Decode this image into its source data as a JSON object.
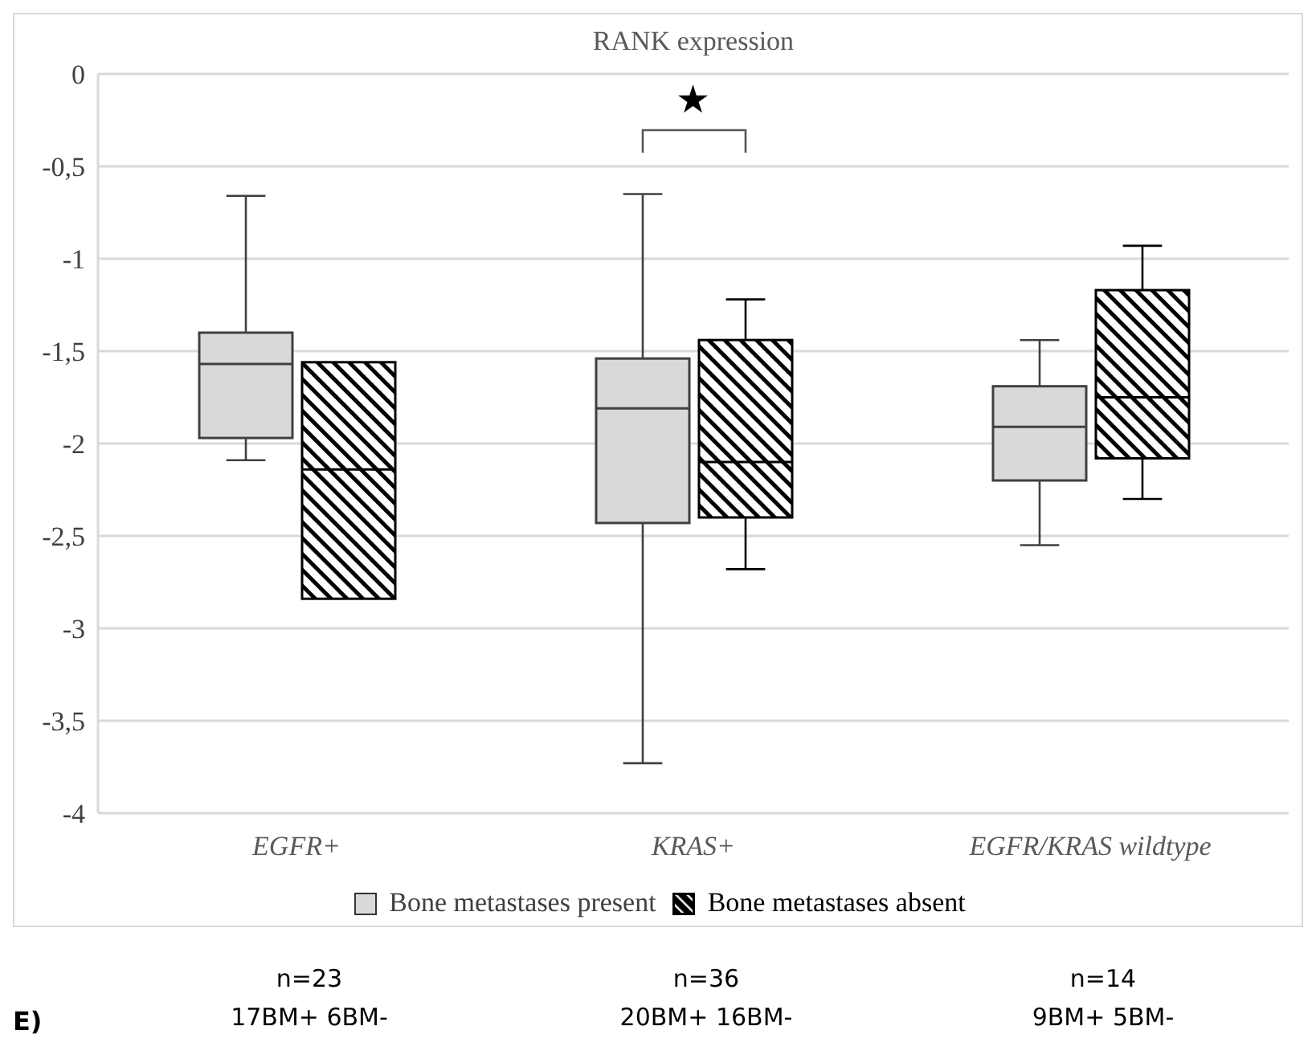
{
  "chart_data": {
    "type": "box",
    "title": "RANK expression",
    "categories": [
      "EGFR+",
      "KRAS+",
      "EGFR/KRAS wildtype"
    ],
    "series": [
      {
        "name": "Bone metastases present",
        "color": "#d9d9d9",
        "boxes": [
          {
            "low": -2.09,
            "q1": -1.97,
            "median": -1.57,
            "q3": -1.4,
            "high": -0.66
          },
          {
            "low": -3.73,
            "q1": -2.43,
            "median": -1.81,
            "q3": -1.54,
            "high": -0.65
          },
          {
            "low": -2.55,
            "q1": -2.2,
            "median": -1.91,
            "q3": -1.69,
            "high": -1.44
          }
        ]
      },
      {
        "name": "Bone metastases absent",
        "color": "#000000",
        "boxes": [
          {
            "low": -2.84,
            "q1": -2.84,
            "median": -2.14,
            "q3": -1.56,
            "high": -1.56
          },
          {
            "low": -2.68,
            "q1": -2.4,
            "median": -2.1,
            "q3": -1.44,
            "high": -1.22
          },
          {
            "low": -2.3,
            "q1": -2.08,
            "median": -1.75,
            "q3": -1.17,
            "high": -0.93
          }
        ]
      }
    ],
    "ylim": [
      -4,
      0
    ],
    "yticks": [
      0,
      {
        "value": -0.5,
        "label": "-0,5"
      },
      -1,
      {
        "value": -1.5,
        "label": "-1,5"
      },
      -2,
      {
        "value": -2.5,
        "label": "-2,5"
      },
      -3,
      {
        "value": -3.5,
        "label": "-3,5"
      },
      -4
    ],
    "grid": "y",
    "legend": "bottom",
    "annotations": [
      "★",
      "n=23",
      "17BM+ 6BM-",
      "n=36",
      "20BM+ 16BM-",
      "n=14",
      "9BM+ 5BM-",
      "E)"
    ]
  }
}
